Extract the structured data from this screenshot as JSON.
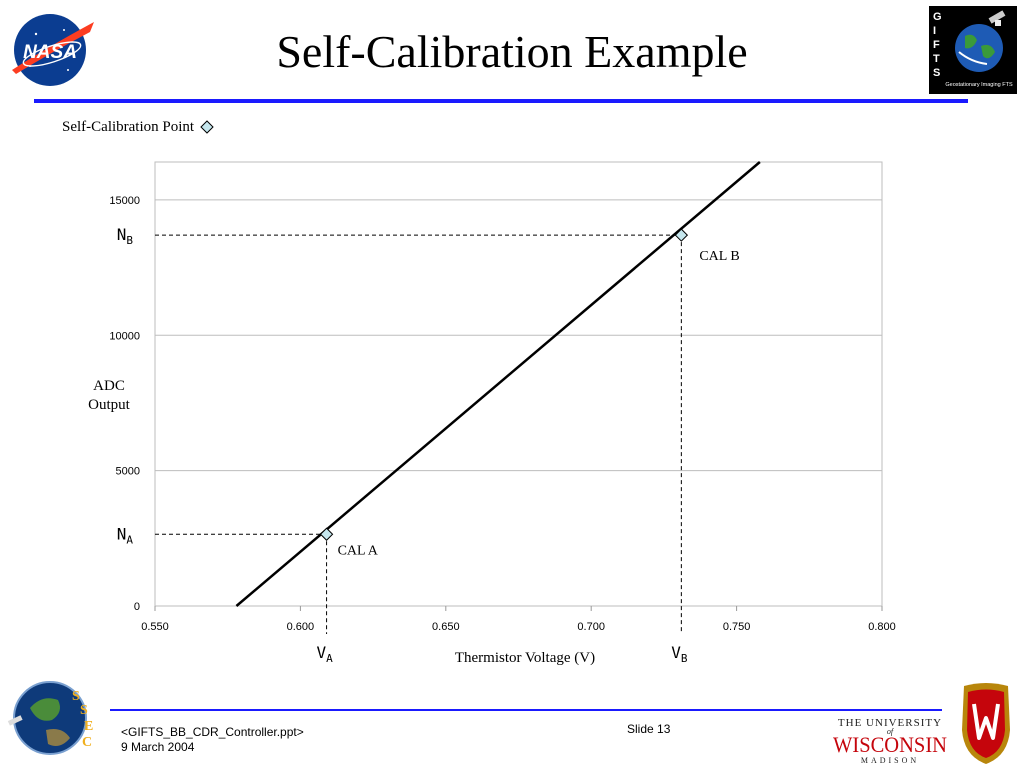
{
  "slide": {
    "title": "Self-Calibration Example",
    "legend_label": "Self-Calibration Point",
    "footer_file": "<GIFTS_BB_CDR_Controller.ppt>",
    "footer_date": "9 March 2004",
    "slide_number": "Slide 13",
    "accent_color": "#1a1aff"
  },
  "logos": {
    "nasa": {
      "text": "NASA",
      "icon": "nasa-meatball-icon"
    },
    "gifts": {
      "letters": [
        "G",
        "I",
        "F",
        "T",
        "S"
      ],
      "caption": "Geostationary Imaging FTS",
      "icon": "gifts-globe-icon"
    },
    "ssec": {
      "letters": [
        "S",
        "S",
        "E",
        "C"
      ],
      "icon": "ssec-globe-icon"
    },
    "uw": {
      "line1": "THE UNIVERSITY",
      "of": "of",
      "line2": "WISCONSIN",
      "line3": "MADISON",
      "icon": "uw-crest-icon"
    }
  },
  "chart_data": {
    "type": "line",
    "title": "",
    "xlabel": "Thermistor Voltage (V)",
    "ylabel": "ADC Output",
    "xlim": [
      0.55,
      0.8
    ],
    "ylim": [
      0,
      16400
    ],
    "x_ticks": [
      "0.550",
      "0.600",
      "0.650",
      "0.700",
      "0.750",
      "0.800"
    ],
    "y_ticks": [
      "0",
      "5000",
      "10000",
      "15000"
    ],
    "grid": "horizontal",
    "series": [
      {
        "x": [
          0.578,
          0.758
        ],
        "y": [
          0,
          16400
        ]
      }
    ],
    "points": [
      {
        "label": "CAL A",
        "x": 0.609,
        "y": 2650,
        "x_marker": "A",
        "y_marker": "A"
      },
      {
        "label": "CAL B",
        "x": 0.731,
        "y": 13700,
        "x_marker": "B",
        "y_marker": "B"
      }
    ],
    "axis_marker_base_x": "V",
    "axis_marker_base_y": "N",
    "point_color": "#c6e7ee"
  }
}
